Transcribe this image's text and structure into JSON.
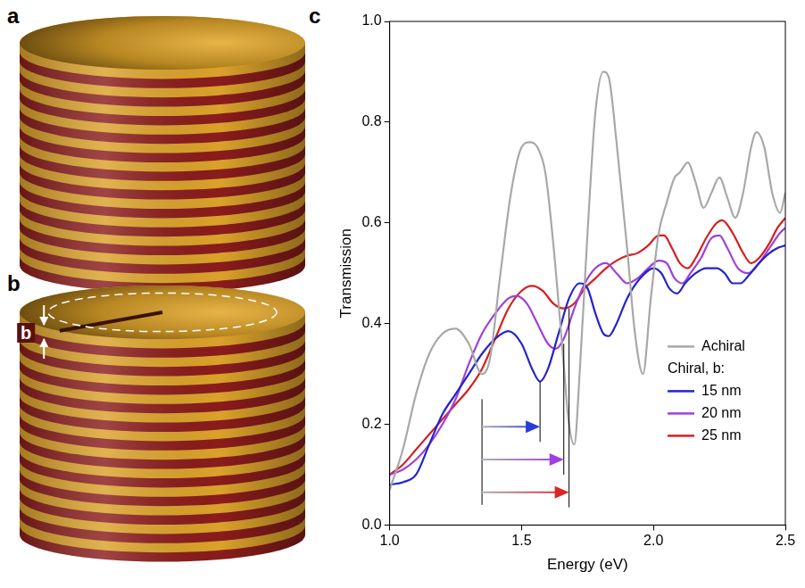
{
  "panel_labels": [
    "a",
    "b",
    "c"
  ],
  "diagram": {
    "pitch_label": "b"
  },
  "chart_data": {
    "type": "line",
    "xlabel": "Energy (eV)",
    "ylabel": "Transmission",
    "xlim": [
      1.0,
      2.5
    ],
    "xticks": [
      {
        "value": 1.0,
        "label": "1.0"
      },
      {
        "value": 1.5,
        "label": "1.5"
      },
      {
        "value": 2.0,
        "label": "2.0"
      },
      {
        "value": 2.5,
        "label": "2.5"
      }
    ],
    "ylim": [
      0.0,
      1.0
    ],
    "yticks": [
      {
        "value": 0.0,
        "label": "0.0"
      },
      {
        "value": 0.2,
        "label": "0.2"
      },
      {
        "value": 0.4,
        "label": "0.4"
      },
      {
        "value": 0.6,
        "label": "0.6"
      },
      {
        "value": 0.8,
        "label": "0.8"
      },
      {
        "value": 1.0,
        "label": "1.0"
      }
    ],
    "grid": false,
    "legend": "lower right",
    "legend_title": "Chiral, b:",
    "series": [
      {
        "name": "Achiral",
        "color": "#a8a8a8",
        "x": [
          1.0,
          1.05,
          1.1,
          1.15,
          1.2,
          1.25,
          1.3,
          1.35,
          1.38,
          1.42,
          1.46,
          1.5,
          1.53,
          1.56,
          1.59,
          1.62,
          1.65,
          1.68,
          1.7,
          1.72,
          1.75,
          1.78,
          1.81,
          1.83,
          1.86,
          1.9,
          1.93,
          1.96,
          1.99,
          2.02,
          2.05,
          2.08,
          2.1,
          2.13,
          2.16,
          2.19,
          2.22,
          2.25,
          2.28,
          2.31,
          2.34,
          2.37,
          2.39,
          2.42,
          2.45,
          2.48,
          2.5
        ],
        "values": [
          0.07,
          0.15,
          0.26,
          0.34,
          0.38,
          0.39,
          0.36,
          0.3,
          0.33,
          0.5,
          0.66,
          0.75,
          0.76,
          0.75,
          0.7,
          0.56,
          0.38,
          0.2,
          0.16,
          0.3,
          0.58,
          0.82,
          0.9,
          0.89,
          0.76,
          0.55,
          0.38,
          0.3,
          0.45,
          0.58,
          0.64,
          0.69,
          0.7,
          0.72,
          0.68,
          0.63,
          0.66,
          0.69,
          0.65,
          0.61,
          0.66,
          0.75,
          0.78,
          0.75,
          0.66,
          0.62,
          0.66
        ]
      },
      {
        "name": "15 nm",
        "color": "#2424c8",
        "x": [
          1.0,
          1.05,
          1.1,
          1.15,
          1.2,
          1.25,
          1.3,
          1.35,
          1.4,
          1.45,
          1.5,
          1.54,
          1.57,
          1.6,
          1.64,
          1.68,
          1.72,
          1.75,
          1.78,
          1.81,
          1.83,
          1.86,
          1.9,
          1.95,
          2.0,
          2.03,
          2.06,
          2.09,
          2.12,
          2.16,
          2.2,
          2.24,
          2.27,
          2.3,
          2.33,
          2.36,
          2.4,
          2.44,
          2.47,
          2.5
        ],
        "values": [
          0.08,
          0.085,
          0.1,
          0.16,
          0.22,
          0.26,
          0.3,
          0.34,
          0.37,
          0.385,
          0.36,
          0.31,
          0.285,
          0.31,
          0.38,
          0.45,
          0.48,
          0.47,
          0.42,
          0.38,
          0.375,
          0.4,
          0.45,
          0.49,
          0.51,
          0.5,
          0.47,
          0.46,
          0.48,
          0.5,
          0.51,
          0.51,
          0.5,
          0.48,
          0.48,
          0.495,
          0.52,
          0.54,
          0.55,
          0.555
        ]
      },
      {
        "name": "20 nm",
        "color": "#a040d8",
        "x": [
          1.0,
          1.05,
          1.1,
          1.15,
          1.2,
          1.25,
          1.3,
          1.35,
          1.4,
          1.45,
          1.48,
          1.52,
          1.56,
          1.6,
          1.63,
          1.66,
          1.7,
          1.74,
          1.78,
          1.82,
          1.86,
          1.9,
          1.94,
          1.98,
          2.02,
          2.05,
          2.08,
          2.11,
          2.14,
          2.18,
          2.22,
          2.25,
          2.28,
          2.32,
          2.36,
          2.4,
          2.44,
          2.48,
          2.5
        ],
        "values": [
          0.1,
          0.11,
          0.13,
          0.16,
          0.2,
          0.25,
          0.32,
          0.38,
          0.42,
          0.45,
          0.455,
          0.44,
          0.4,
          0.36,
          0.35,
          0.37,
          0.43,
          0.48,
          0.51,
          0.52,
          0.5,
          0.48,
          0.49,
          0.51,
          0.525,
          0.52,
          0.49,
          0.48,
          0.5,
          0.53,
          0.57,
          0.575,
          0.55,
          0.51,
          0.5,
          0.52,
          0.55,
          0.58,
          0.59
        ]
      },
      {
        "name": "25 nm",
        "color": "#d42020",
        "x": [
          1.0,
          1.05,
          1.1,
          1.15,
          1.2,
          1.25,
          1.3,
          1.35,
          1.4,
          1.45,
          1.5,
          1.54,
          1.58,
          1.62,
          1.66,
          1.7,
          1.74,
          1.78,
          1.82,
          1.86,
          1.9,
          1.94,
          1.98,
          2.02,
          2.04,
          2.07,
          2.1,
          2.13,
          2.16,
          2.2,
          2.24,
          2.26,
          2.3,
          2.34,
          2.37,
          2.4,
          2.44,
          2.47,
          2.5
        ],
        "values": [
          0.1,
          0.12,
          0.15,
          0.18,
          0.21,
          0.24,
          0.27,
          0.31,
          0.37,
          0.43,
          0.465,
          0.475,
          0.465,
          0.44,
          0.43,
          0.44,
          0.47,
          0.49,
          0.51,
          0.525,
          0.535,
          0.54,
          0.555,
          0.575,
          0.575,
          0.55,
          0.52,
          0.51,
          0.53,
          0.57,
          0.6,
          0.605,
          0.58,
          0.54,
          0.52,
          0.53,
          0.56,
          0.59,
          0.61
        ]
      }
    ],
    "arrows": [
      {
        "x0": 1.35,
        "x1": 1.57,
        "y": 0.195,
        "color": "#2b3bd9"
      },
      {
        "x0": 1.35,
        "x1": 1.66,
        "y": 0.13,
        "color": "#a040e0"
      },
      {
        "x0": 1.35,
        "x1": 1.68,
        "y": 0.065,
        "color": "#d62828"
      }
    ],
    "marker_lines": [
      {
        "x": 1.35,
        "y0": 0.04,
        "y1": 0.25
      },
      {
        "x": 1.57,
        "y0": 0.165,
        "y1": 0.285
      },
      {
        "x": 1.66,
        "y0": 0.1,
        "y1": 0.36
      },
      {
        "x": 1.68,
        "y0": 0.035,
        "y1": 0.43
      }
    ]
  }
}
